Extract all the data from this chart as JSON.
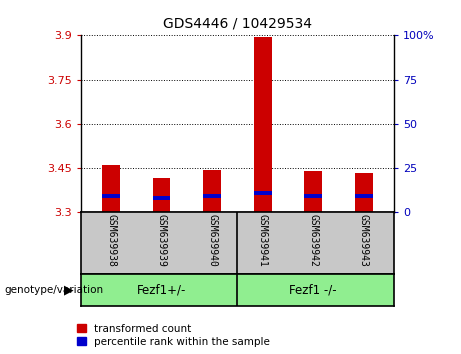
{
  "title": "GDS4446 / 10429534",
  "samples": [
    "GSM639938",
    "GSM639939",
    "GSM639940",
    "GSM639941",
    "GSM639942",
    "GSM639943"
  ],
  "red_values": [
    3.46,
    3.415,
    3.445,
    3.895,
    3.44,
    3.435
  ],
  "blue_values": [
    3.355,
    3.35,
    3.355,
    3.365,
    3.355,
    3.355
  ],
  "ymin": 3.3,
  "ymax": 3.9,
  "yticks_left": [
    3.3,
    3.45,
    3.6,
    3.75,
    3.9
  ],
  "yticks_right": [
    0,
    25,
    50,
    75,
    100
  ],
  "bar_width": 0.35,
  "red_color": "#CC0000",
  "blue_color": "#0000CC",
  "left_tick_color": "#CC0000",
  "right_tick_color": "#0000BB",
  "xlabel_area_color": "#C8C8C8",
  "group_area_color": "#90EE90",
  "legend_red": "transformed count",
  "legend_blue": "percentile rank within the sample",
  "group1_label": "Fezf1+/-",
  "group2_label": "Fezf1 -/-",
  "geno_label": "genotype/variation"
}
